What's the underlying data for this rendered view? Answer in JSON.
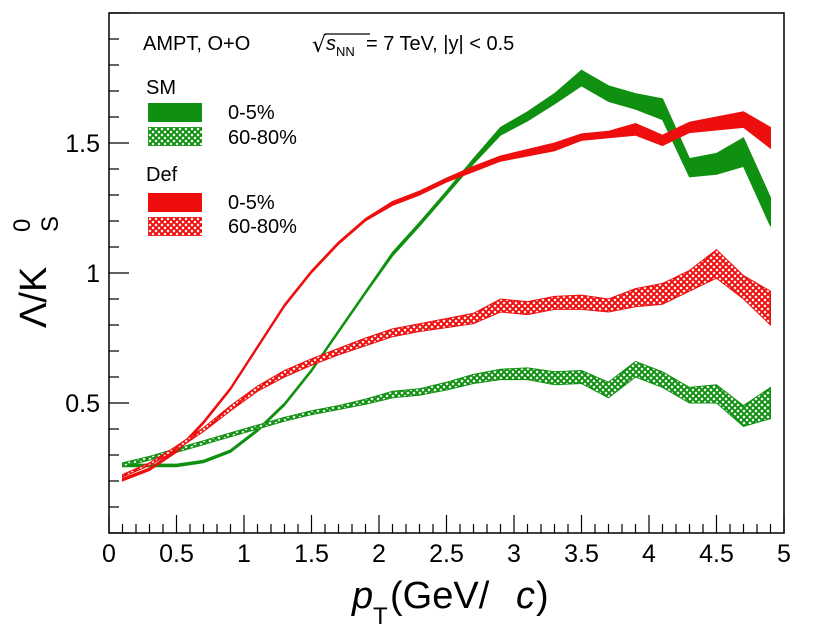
{
  "chart_data": {
    "type": "area",
    "annotation": {
      "prefix": "AMPT, O+O ",
      "sqrt_symbol": "√",
      "s_var": "s",
      "s_sub": "NN",
      "suffix": " = 7 TeV, |y| < 0.5"
    },
    "xlabel": {
      "p": "p",
      "sub": "T",
      "rest_open": "(GeV/",
      "c": "c",
      "rest_close": ")"
    },
    "ylabel": {
      "lambda": "Λ",
      "slash": "/",
      "k": "K",
      "sup": "0",
      "sub": "S"
    },
    "xlim": [
      0,
      5
    ],
    "ylim": [
      0,
      2
    ],
    "x_ticks": [
      "0",
      "0.5",
      "1",
      "1.5",
      "2",
      "2.5",
      "3",
      "3.5",
      "4",
      "4.5",
      "5"
    ],
    "y_ticks": [
      "0.5",
      "1",
      "1.5"
    ],
    "legend_groups": [
      {
        "title": "SM",
        "entries": [
          "0-5%",
          "60-80%"
        ]
      },
      {
        "title": "Def",
        "entries": [
          "0-5%",
          "60-80%"
        ]
      }
    ],
    "colors": {
      "SM": "#109010",
      "Def": "#ee0e0e"
    },
    "series": [
      {
        "group": "SM",
        "centrality": "0-5%",
        "color": "#109010",
        "fill": "solid",
        "x": [
          0.1,
          0.3,
          0.5,
          0.7,
          0.9,
          1.1,
          1.3,
          1.5,
          1.7,
          1.9,
          2.1,
          2.3,
          2.5,
          2.7,
          2.9,
          3.1,
          3.3,
          3.5,
          3.7,
          3.9,
          4.1,
          4.3,
          4.5,
          4.7,
          4.9
        ],
        "lo": [
          0.255,
          0.255,
          0.255,
          0.27,
          0.31,
          0.39,
          0.49,
          0.62,
          0.77,
          0.92,
          1.065,
          1.18,
          1.3,
          1.42,
          1.53,
          1.585,
          1.65,
          1.72,
          1.66,
          1.63,
          1.59,
          1.37,
          1.38,
          1.41,
          1.18
        ],
        "hi": [
          0.265,
          0.265,
          0.265,
          0.28,
          0.32,
          0.4,
          0.5,
          0.63,
          0.78,
          0.93,
          1.08,
          1.195,
          1.315,
          1.44,
          1.56,
          1.62,
          1.69,
          1.78,
          1.72,
          1.69,
          1.67,
          1.44,
          1.46,
          1.52,
          1.29
        ]
      },
      {
        "group": "SM",
        "centrality": "60-80%",
        "color": "#109010",
        "fill": "hatch",
        "x": [
          0.1,
          0.3,
          0.5,
          0.7,
          0.9,
          1.1,
          1.3,
          1.5,
          1.7,
          1.9,
          2.1,
          2.3,
          2.5,
          2.7,
          2.9,
          3.1,
          3.3,
          3.5,
          3.7,
          3.9,
          4.1,
          4.3,
          4.5,
          4.7,
          4.9
        ],
        "lo": [
          0.255,
          0.28,
          0.31,
          0.34,
          0.37,
          0.4,
          0.43,
          0.455,
          0.475,
          0.495,
          0.52,
          0.53,
          0.55,
          0.575,
          0.59,
          0.59,
          0.57,
          0.575,
          0.52,
          0.6,
          0.56,
          0.5,
          0.5,
          0.41,
          0.44
        ],
        "hi": [
          0.27,
          0.295,
          0.325,
          0.355,
          0.385,
          0.415,
          0.445,
          0.47,
          0.49,
          0.515,
          0.545,
          0.555,
          0.58,
          0.61,
          0.63,
          0.635,
          0.62,
          0.625,
          0.58,
          0.66,
          0.62,
          0.56,
          0.57,
          0.49,
          0.56
        ]
      },
      {
        "group": "Def",
        "centrality": "0-5%",
        "color": "#ee0e0e",
        "fill": "solid",
        "x": [
          0.1,
          0.3,
          0.5,
          0.7,
          0.9,
          1.1,
          1.3,
          1.5,
          1.7,
          1.9,
          2.1,
          2.3,
          2.5,
          2.7,
          2.9,
          3.1,
          3.3,
          3.5,
          3.7,
          3.9,
          4.1,
          4.3,
          4.5,
          4.7,
          4.9
        ],
        "lo": [
          0.2,
          0.24,
          0.31,
          0.42,
          0.55,
          0.71,
          0.87,
          1.0,
          1.11,
          1.2,
          1.26,
          1.3,
          1.35,
          1.39,
          1.43,
          1.45,
          1.47,
          1.51,
          1.52,
          1.53,
          1.49,
          1.54,
          1.55,
          1.56,
          1.48
        ],
        "hi": [
          0.21,
          0.25,
          0.32,
          0.43,
          0.56,
          0.72,
          0.88,
          1.01,
          1.12,
          1.21,
          1.275,
          1.315,
          1.365,
          1.41,
          1.45,
          1.475,
          1.5,
          1.535,
          1.545,
          1.575,
          1.53,
          1.58,
          1.6,
          1.62,
          1.56
        ]
      },
      {
        "group": "Def",
        "centrality": "60-80%",
        "color": "#ee0e0e",
        "fill": "hatch",
        "x": [
          0.1,
          0.3,
          0.5,
          0.7,
          0.9,
          1.1,
          1.3,
          1.5,
          1.7,
          1.9,
          2.1,
          2.3,
          2.5,
          2.7,
          2.9,
          3.1,
          3.3,
          3.5,
          3.7,
          3.9,
          4.1,
          4.3,
          4.5,
          4.7,
          4.9
        ],
        "lo": [
          0.215,
          0.26,
          0.32,
          0.39,
          0.47,
          0.545,
          0.6,
          0.645,
          0.685,
          0.72,
          0.755,
          0.775,
          0.79,
          0.805,
          0.85,
          0.84,
          0.86,
          0.86,
          0.85,
          0.87,
          0.88,
          0.93,
          0.98,
          0.9,
          0.8
        ],
        "hi": [
          0.225,
          0.27,
          0.335,
          0.405,
          0.49,
          0.565,
          0.625,
          0.67,
          0.71,
          0.75,
          0.785,
          0.805,
          0.825,
          0.845,
          0.9,
          0.89,
          0.91,
          0.915,
          0.9,
          0.94,
          0.96,
          1.01,
          1.09,
          0.99,
          0.93
        ]
      }
    ]
  }
}
